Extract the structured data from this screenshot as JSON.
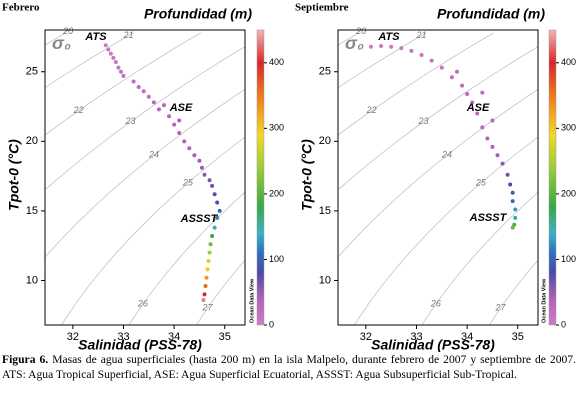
{
  "chart_data": [
    {
      "type": "scatter",
      "panel_label": "Febrero",
      "title": "Profundidad (m)",
      "x_label": "Salinidad (PSS-78)",
      "y_label": "Tpot-0 (°C)",
      "isopycnal_symbol": "σ₀",
      "credit": "Ocean Data View",
      "annotations": [
        "ATS",
        "ASE",
        "ASSST"
      ],
      "xlim": [
        31.45,
        35.4
      ],
      "ylim": [
        6.8,
        28
      ],
      "xticks": [
        32,
        33,
        34,
        35
      ],
      "yticks": [
        10,
        15,
        20,
        25
      ],
      "isopycnals": [
        20,
        21,
        22,
        23,
        24,
        25,
        26,
        27
      ],
      "clim": [
        0,
        450
      ],
      "cticks": [
        0,
        100,
        200,
        300,
        400
      ],
      "series": [
        {
          "name": "Febrero",
          "x": [
            32.65,
            32.7,
            32.75,
            32.8,
            32.85,
            32.9,
            32.95,
            33.0,
            33.2,
            33.3,
            33.4,
            33.5,
            33.6,
            33.7,
            33.8,
            33.9,
            34.0,
            34.1,
            34.1,
            34.2,
            34.3,
            34.4,
            34.5,
            34.55,
            34.6,
            34.7,
            34.75,
            34.8,
            34.85,
            34.9,
            34.85,
            34.8,
            34.75,
            34.72,
            34.7,
            34.68,
            34.66,
            34.64,
            34.62,
            34.6,
            34.58
          ],
          "values": [
            26.9,
            26.6,
            26.3,
            26.0,
            25.7,
            25.3,
            25.0,
            24.7,
            24.3,
            23.9,
            23.6,
            23.2,
            22.8,
            22.3,
            22.6,
            21.8,
            21.2,
            21.5,
            20.6,
            20.0,
            19.5,
            19.0,
            18.6,
            18.1,
            17.6,
            17.2,
            16.8,
            16.2,
            15.6,
            15.0,
            14.5,
            13.8,
            13.2,
            12.6,
            12.0,
            11.4,
            10.8,
            10.2,
            9.6,
            9.0,
            8.6
          ],
          "depth": [
            5,
            8,
            10,
            12,
            10,
            15,
            18,
            20,
            22,
            25,
            22,
            25,
            28,
            30,
            30,
            32,
            35,
            35,
            38,
            40,
            42,
            45,
            48,
            50,
            55,
            60,
            65,
            75,
            90,
            105,
            120,
            150,
            180,
            210,
            240,
            270,
            300,
            330,
            360,
            400,
            430
          ]
        }
      ]
    },
    {
      "type": "scatter",
      "panel_label": "Septiembre",
      "title": "Profundidad (m)",
      "x_label": "Salinidad (PSS-78)",
      "y_label": "Tpot-0 (°C)",
      "isopycnal_symbol": "σ₀",
      "credit": "Ocean Data View",
      "annotations": [
        "ATS",
        "ASE",
        "ASSST"
      ],
      "xlim": [
        31.45,
        35.4
      ],
      "ylim": [
        6.8,
        28
      ],
      "xticks": [
        32,
        33,
        34,
        35
      ],
      "yticks": [
        10,
        15,
        20,
        25
      ],
      "isopycnals": [
        20,
        21,
        22,
        23,
        24,
        25,
        26,
        27
      ],
      "clim": [
        0,
        450
      ],
      "cticks": [
        0,
        100,
        200,
        300,
        400
      ],
      "series": [
        {
          "name": "Septiembre",
          "x": [
            32.1,
            32.3,
            32.5,
            32.7,
            32.9,
            33.1,
            33.3,
            33.5,
            33.7,
            33.8,
            33.9,
            34.0,
            34.1,
            34.3,
            34.2,
            34.3,
            34.5,
            34.4,
            34.5,
            34.6,
            34.7,
            34.8,
            34.85,
            34.9,
            34.9,
            34.95,
            34.95,
            34.93,
            34.9
          ],
          "values": [
            26.8,
            26.85,
            26.8,
            26.7,
            26.5,
            26.2,
            25.8,
            25.3,
            24.6,
            25.0,
            24.0,
            23.4,
            22.8,
            23.5,
            22.0,
            21.0,
            21.5,
            20.2,
            19.6,
            19.0,
            18.4,
            17.6,
            16.9,
            16.3,
            15.7,
            15.1,
            14.5,
            14.0,
            13.8
          ],
          "depth": [
            5,
            6,
            8,
            10,
            12,
            14,
            16,
            18,
            20,
            20,
            22,
            25,
            28,
            25,
            30,
            32,
            30,
            35,
            40,
            45,
            55,
            65,
            80,
            95,
            110,
            130,
            160,
            190,
            210
          ]
        }
      ]
    }
  ],
  "caption": {
    "label": "Figura 6.",
    "text": "Masas de agua superficiales (hasta 200 m) en la isla Malpelo, durante febrero de 2007 y septiembre de 2007. ATS: Agua Tropical Superficial, ASE: Agua Superficial Ecuatorial, ASSST: Agua Subsuperficial Sub-Tropical."
  }
}
